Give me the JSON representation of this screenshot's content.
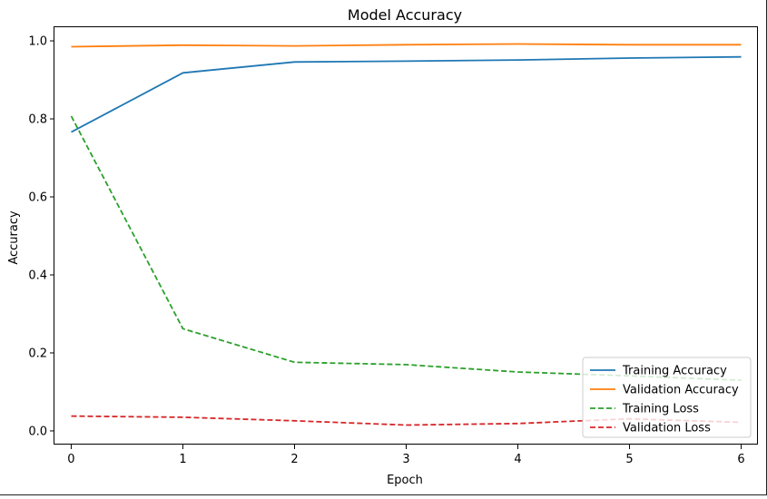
{
  "chart_data": {
    "type": "line",
    "title": "Model Accuracy",
    "xlabel": "Epoch",
    "ylabel": "Accuracy",
    "x": [
      0,
      1,
      2,
      3,
      4,
      5,
      6
    ],
    "xticks": [
      "0",
      "1",
      "2",
      "3",
      "4",
      "5",
      "6"
    ],
    "yticks": [
      "0.0",
      "0.2",
      "0.4",
      "0.6",
      "0.8",
      "1.0"
    ],
    "xlim": [
      -0.15,
      6.15
    ],
    "ylim": [
      -0.035,
      1.035
    ],
    "grid": false,
    "legend_position": "bottom-right",
    "series": [
      {
        "name": "Training Accuracy",
        "color": "#1f77b4",
        "dash": "solid",
        "values": [
          0.766,
          0.918,
          0.946,
          0.948,
          0.951,
          0.956,
          0.959
        ]
      },
      {
        "name": "Validation Accuracy",
        "color": "#ff7f0e",
        "dash": "solid",
        "values": [
          0.985,
          0.989,
          0.987,
          0.99,
          0.992,
          0.99,
          0.99
        ]
      },
      {
        "name": "Training Loss",
        "color": "#2ca02c",
        "dash": "dashed",
        "values": [
          0.807,
          0.262,
          0.176,
          0.17,
          0.151,
          0.141,
          0.13
        ]
      },
      {
        "name": "Validation Loss",
        "color": "#d62728",
        "dash": "dashed",
        "values": [
          0.038,
          0.035,
          0.026,
          0.015,
          0.019,
          0.031,
          0.022
        ]
      }
    ]
  }
}
